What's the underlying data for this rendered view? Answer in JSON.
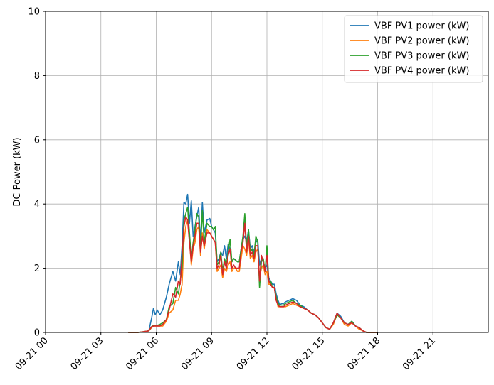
{
  "chart_data": {
    "type": "line",
    "title": "",
    "xlabel": "",
    "ylabel": "DC Power (kW)",
    "ylim": [
      0,
      10
    ],
    "xlim": [
      "09-21 00:00",
      "09-21 24:00"
    ],
    "grid": true,
    "legend_position": "top-right",
    "x_unit": "hour of day (09-21)",
    "xticks": [
      {
        "value": 0,
        "label": "09-21 00"
      },
      {
        "value": 3,
        "label": "09-21 03"
      },
      {
        "value": 6,
        "label": "09-21 06"
      },
      {
        "value": 9,
        "label": "09-21 09"
      },
      {
        "value": 12,
        "label": "09-21 12"
      },
      {
        "value": 15,
        "label": "09-21 15"
      },
      {
        "value": 18,
        "label": "09-21 18"
      },
      {
        "value": 21,
        "label": "09-21 21"
      }
    ],
    "yticks": [
      {
        "value": 0,
        "label": "0"
      },
      {
        "value": 2,
        "label": "2"
      },
      {
        "value": 4,
        "label": "4"
      },
      {
        "value": 6,
        "label": "6"
      },
      {
        "value": 8,
        "label": "8"
      },
      {
        "value": 10,
        "label": "10"
      }
    ],
    "series": [
      {
        "name": "VBF PV1 power (kW)",
        "color": "#1f77b4",
        "x": [
          4.5,
          5.0,
          5.3,
          5.6,
          5.75,
          5.85,
          5.95,
          6.05,
          6.2,
          6.35,
          6.55,
          6.7,
          6.9,
          7.05,
          7.2,
          7.3,
          7.4,
          7.5,
          7.6,
          7.7,
          7.8,
          7.9,
          8.0,
          8.1,
          8.2,
          8.3,
          8.4,
          8.5,
          8.6,
          8.75,
          8.9,
          9.0,
          9.1,
          9.2,
          9.3,
          9.4,
          9.5,
          9.6,
          9.7,
          9.8,
          9.9,
          10.0,
          10.1,
          10.2,
          10.3,
          10.4,
          10.5,
          10.6,
          10.7,
          10.8,
          10.9,
          11.0,
          11.1,
          11.2,
          11.3,
          11.4,
          11.5,
          11.6,
          11.7,
          11.8,
          11.9,
          12.0,
          12.1,
          12.2,
          12.3,
          12.4,
          12.5,
          12.6,
          12.7,
          12.8,
          12.9,
          13.0,
          13.2,
          13.4,
          13.6,
          13.8,
          14.0,
          14.2,
          14.4,
          14.6,
          14.8,
          15.0,
          15.2,
          15.4,
          15.6,
          15.8,
          16.0,
          16.2,
          16.4,
          16.6,
          16.8,
          17.0,
          17.2,
          17.4,
          17.6,
          18.0
        ],
        "values": [
          0.0,
          0.0,
          0.02,
          0.05,
          0.45,
          0.75,
          0.55,
          0.7,
          0.55,
          0.7,
          1.1,
          1.5,
          1.9,
          1.6,
          2.2,
          1.8,
          2.7,
          4.05,
          4.0,
          4.3,
          3.4,
          4.1,
          3.0,
          3.3,
          3.6,
          3.9,
          2.8,
          4.05,
          3.1,
          3.5,
          3.55,
          3.3,
          3.2,
          3.1,
          2.2,
          2.3,
          2.5,
          2.4,
          2.7,
          2.3,
          2.75,
          2.6,
          2.2,
          2.3,
          2.25,
          2.2,
          2.2,
          2.6,
          2.9,
          3.0,
          2.8,
          3.2,
          2.6,
          2.7,
          2.5,
          2.8,
          2.9,
          2.1,
          2.3,
          2.2,
          2.0,
          2.1,
          1.7,
          1.6,
          1.5,
          1.5,
          1.2,
          1.0,
          0.85,
          0.9,
          0.9,
          0.95,
          1.0,
          1.05,
          1.0,
          0.85,
          0.8,
          0.7,
          0.6,
          0.55,
          0.45,
          0.3,
          0.15,
          0.1,
          0.3,
          0.6,
          0.5,
          0.3,
          0.25,
          0.35,
          0.2,
          0.15,
          0.05,
          0.0,
          0.0,
          0.0
        ]
      },
      {
        "name": "VBF PV2 power (kW)",
        "color": "#ff7f0e",
        "x": [
          4.5,
          5.0,
          5.3,
          5.6,
          5.75,
          5.85,
          5.95,
          6.05,
          6.2,
          6.35,
          6.55,
          6.7,
          6.9,
          7.05,
          7.2,
          7.3,
          7.4,
          7.5,
          7.6,
          7.7,
          7.8,
          7.9,
          8.0,
          8.1,
          8.2,
          8.3,
          8.4,
          8.5,
          8.6,
          8.75,
          8.9,
          9.0,
          9.1,
          9.2,
          9.3,
          9.4,
          9.5,
          9.6,
          9.7,
          9.8,
          9.9,
          10.0,
          10.1,
          10.2,
          10.3,
          10.4,
          10.5,
          10.6,
          10.7,
          10.8,
          10.9,
          11.0,
          11.1,
          11.2,
          11.3,
          11.4,
          11.5,
          11.6,
          11.7,
          11.8,
          11.9,
          12.0,
          12.1,
          12.2,
          12.3,
          12.4,
          12.5,
          12.6,
          12.7,
          12.8,
          12.9,
          13.0,
          13.2,
          13.4,
          13.6,
          13.8,
          14.0,
          14.2,
          14.4,
          14.6,
          14.8,
          15.0,
          15.2,
          15.4,
          15.6,
          15.8,
          16.0,
          16.2,
          16.4,
          16.6,
          16.8,
          17.0,
          17.2,
          17.4,
          17.6,
          18.0
        ],
        "values": [
          0.0,
          0.0,
          0.02,
          0.05,
          0.15,
          0.2,
          0.2,
          0.2,
          0.2,
          0.2,
          0.35,
          0.6,
          0.7,
          1.0,
          1.0,
          1.2,
          1.5,
          2.8,
          3.3,
          3.5,
          2.9,
          2.1,
          2.6,
          2.8,
          3.2,
          3.3,
          2.4,
          3.1,
          2.6,
          3.2,
          3.1,
          3.0,
          2.9,
          2.8,
          1.9,
          2.0,
          2.1,
          1.7,
          2.0,
          1.9,
          2.1,
          2.2,
          1.9,
          2.0,
          2.0,
          1.9,
          1.9,
          2.3,
          2.7,
          2.6,
          2.4,
          2.9,
          2.3,
          2.4,
          2.2,
          2.5,
          2.6,
          1.7,
          2.0,
          2.1,
          1.8,
          1.9,
          1.5,
          1.5,
          1.4,
          1.4,
          1.1,
          0.8,
          0.8,
          0.8,
          0.8,
          0.8,
          0.85,
          0.9,
          0.85,
          0.8,
          0.75,
          0.7,
          0.6,
          0.55,
          0.45,
          0.3,
          0.15,
          0.1,
          0.25,
          0.55,
          0.45,
          0.25,
          0.2,
          0.3,
          0.2,
          0.1,
          0.05,
          0.0,
          0.0,
          0.0
        ]
      },
      {
        "name": "VBF PV3 power (kW)",
        "color": "#2ca02c",
        "x": [
          4.5,
          5.0,
          5.3,
          5.6,
          5.75,
          5.85,
          5.95,
          6.05,
          6.2,
          6.35,
          6.55,
          6.7,
          6.9,
          7.05,
          7.2,
          7.3,
          7.4,
          7.5,
          7.6,
          7.7,
          7.8,
          7.9,
          8.0,
          8.1,
          8.2,
          8.3,
          8.4,
          8.5,
          8.6,
          8.75,
          8.9,
          9.0,
          9.1,
          9.2,
          9.3,
          9.4,
          9.5,
          9.6,
          9.7,
          9.8,
          9.9,
          10.0,
          10.1,
          10.2,
          10.3,
          10.4,
          10.5,
          10.6,
          10.7,
          10.8,
          10.9,
          11.0,
          11.1,
          11.2,
          11.3,
          11.4,
          11.5,
          11.6,
          11.7,
          11.8,
          11.9,
          12.0,
          12.1,
          12.2,
          12.3,
          12.4,
          12.5,
          12.6,
          12.7,
          12.8,
          12.9,
          13.0,
          13.2,
          13.4,
          13.6,
          13.8,
          14.0,
          14.2,
          14.4,
          14.6,
          14.8,
          15.0,
          15.2,
          15.4,
          15.6,
          15.8,
          16.0,
          16.2,
          16.4,
          16.6,
          16.8,
          17.0,
          17.2,
          17.4,
          17.6,
          18.0
        ],
        "values": [
          0.0,
          0.0,
          0.02,
          0.05,
          0.18,
          0.22,
          0.22,
          0.22,
          0.25,
          0.3,
          0.4,
          0.8,
          0.9,
          1.4,
          1.2,
          1.6,
          2.0,
          3.5,
          3.7,
          3.9,
          3.1,
          2.3,
          2.8,
          3.2,
          3.7,
          3.6,
          2.6,
          3.8,
          2.8,
          3.4,
          3.3,
          3.3,
          3.2,
          3.3,
          2.1,
          2.2,
          2.5,
          1.9,
          2.3,
          2.1,
          2.5,
          2.9,
          2.2,
          2.3,
          2.25,
          2.2,
          2.2,
          2.6,
          3.0,
          3.7,
          2.6,
          3.2,
          2.5,
          2.6,
          2.4,
          3.0,
          2.8,
          1.4,
          2.2,
          2.3,
          1.9,
          2.7,
          1.6,
          1.6,
          1.4,
          1.4,
          1.1,
          0.9,
          0.85,
          0.85,
          0.85,
          0.9,
          0.95,
          1.0,
          0.9,
          0.85,
          0.75,
          0.7,
          0.6,
          0.55,
          0.45,
          0.3,
          0.15,
          0.1,
          0.3,
          0.55,
          0.45,
          0.3,
          0.25,
          0.35,
          0.2,
          0.15,
          0.05,
          0.0,
          0.0,
          0.0
        ]
      },
      {
        "name": "VBF PV4 power (kW)",
        "color": "#d62728",
        "x": [
          4.5,
          5.0,
          5.3,
          5.6,
          5.75,
          5.85,
          5.95,
          6.05,
          6.2,
          6.35,
          6.55,
          6.7,
          6.9,
          7.05,
          7.2,
          7.3,
          7.4,
          7.5,
          7.6,
          7.7,
          7.8,
          7.9,
          8.0,
          8.1,
          8.2,
          8.3,
          8.4,
          8.5,
          8.6,
          8.75,
          8.9,
          9.0,
          9.1,
          9.2,
          9.3,
          9.4,
          9.5,
          9.6,
          9.7,
          9.8,
          9.9,
          10.0,
          10.1,
          10.2,
          10.3,
          10.4,
          10.5,
          10.6,
          10.7,
          10.8,
          10.9,
          11.0,
          11.1,
          11.2,
          11.3,
          11.4,
          11.5,
          11.6,
          11.7,
          11.8,
          11.9,
          12.0,
          12.1,
          12.2,
          12.3,
          12.4,
          12.5,
          12.6,
          12.7,
          12.8,
          12.9,
          13.0,
          13.2,
          13.4,
          13.6,
          13.8,
          14.0,
          14.2,
          14.4,
          14.6,
          14.8,
          15.0,
          15.2,
          15.4,
          15.6,
          15.8,
          16.0,
          16.2,
          16.4,
          16.6,
          16.8,
          17.0,
          17.2,
          17.4,
          17.6,
          18.0
        ],
        "values": [
          0.0,
          0.0,
          0.02,
          0.05,
          0.18,
          0.2,
          0.2,
          0.2,
          0.2,
          0.25,
          0.4,
          0.7,
          1.2,
          1.1,
          1.6,
          1.5,
          2.4,
          3.3,
          3.6,
          3.5,
          2.8,
          2.2,
          2.7,
          3.0,
          3.4,
          3.4,
          2.5,
          3.0,
          2.7,
          3.1,
          3.1,
          3.0,
          2.9,
          2.8,
          2.0,
          2.1,
          2.4,
          1.8,
          2.2,
          2.0,
          2.4,
          2.6,
          2.0,
          2.1,
          2.0,
          2.0,
          2.0,
          2.5,
          2.8,
          3.4,
          2.5,
          3.0,
          2.4,
          2.5,
          2.3,
          2.7,
          2.7,
          1.6,
          2.4,
          2.2,
          1.9,
          2.4,
          1.6,
          1.5,
          1.4,
          1.4,
          1.0,
          0.85,
          0.8,
          0.8,
          0.8,
          0.85,
          0.9,
          0.95,
          0.9,
          0.8,
          0.75,
          0.7,
          0.6,
          0.55,
          0.45,
          0.3,
          0.15,
          0.1,
          0.3,
          0.6,
          0.45,
          0.3,
          0.25,
          0.3,
          0.2,
          0.15,
          0.05,
          0.0,
          0.0,
          0.0
        ]
      }
    ]
  }
}
